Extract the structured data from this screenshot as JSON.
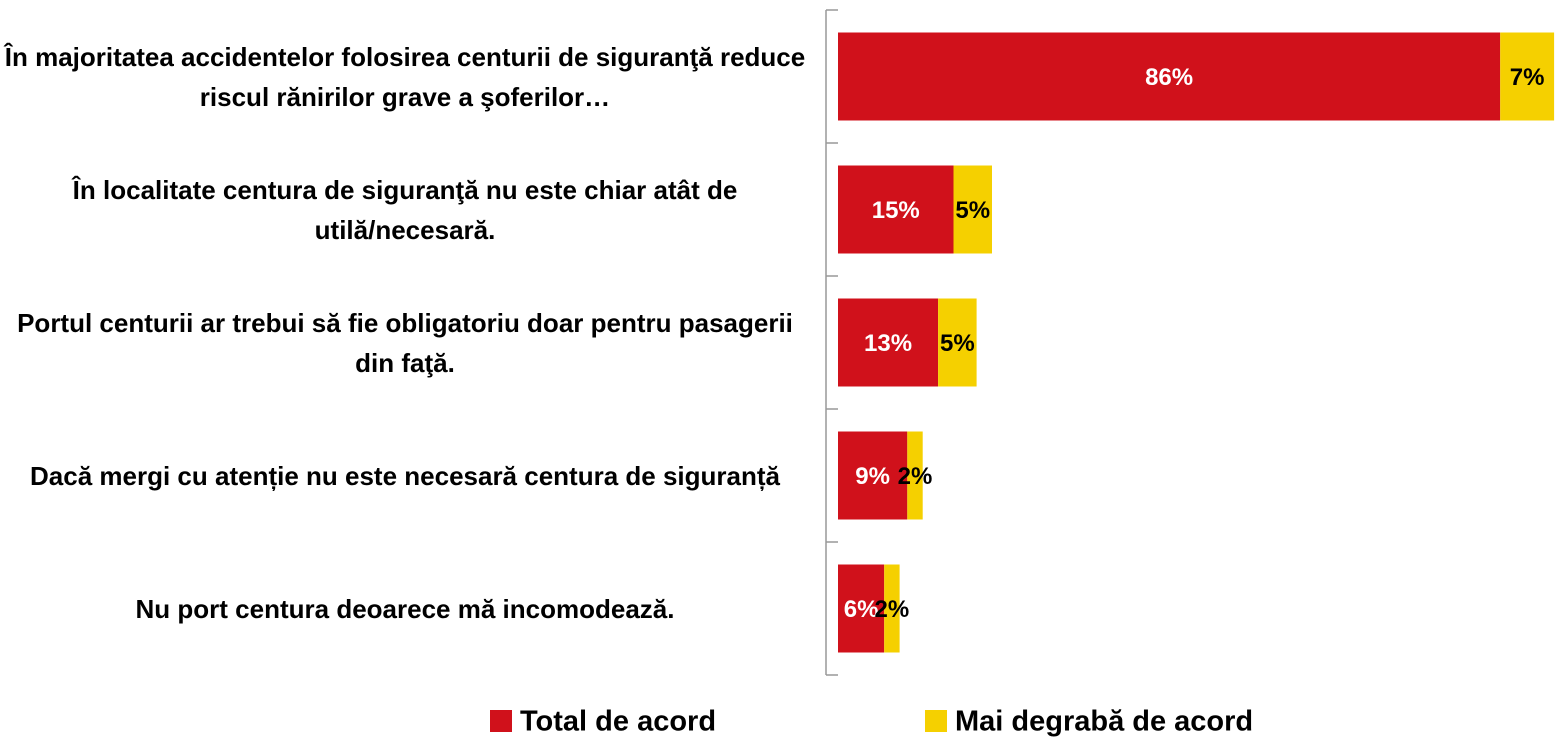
{
  "chart_data": {
    "type": "bar",
    "orientation": "horizontal",
    "stacked": true,
    "categories": [
      "În majoritatea accidentelor folosirea centurii de siguranţă reduce riscul rănirilor grave a şoferilor…",
      "În localitate centura de siguranţă nu este chiar atât de utilă/necesară.",
      "Portul centurii ar trebui să fie obligatoriu doar pentru pasagerii din faţă.",
      "Dacă mergi cu atenție nu este necesară centura de siguranță",
      "Nu port centura deoarece mă incomodează."
    ],
    "series": [
      {
        "name": "Total de acord",
        "color": "#d0111b",
        "label_color": "#ffffff",
        "values": [
          86,
          15,
          13,
          9,
          6
        ],
        "value_labels": [
          "86%",
          "15%",
          "13%",
          "9%",
          "6%"
        ]
      },
      {
        "name": "Mai degrabă de acord",
        "color": "#f5d000",
        "label_color": "#000000",
        "values": [
          7,
          5,
          5,
          2,
          2
        ],
        "value_labels": [
          "7%",
          "5%",
          "5%",
          "2%",
          "2%"
        ]
      }
    ],
    "legend": "bottom"
  }
}
